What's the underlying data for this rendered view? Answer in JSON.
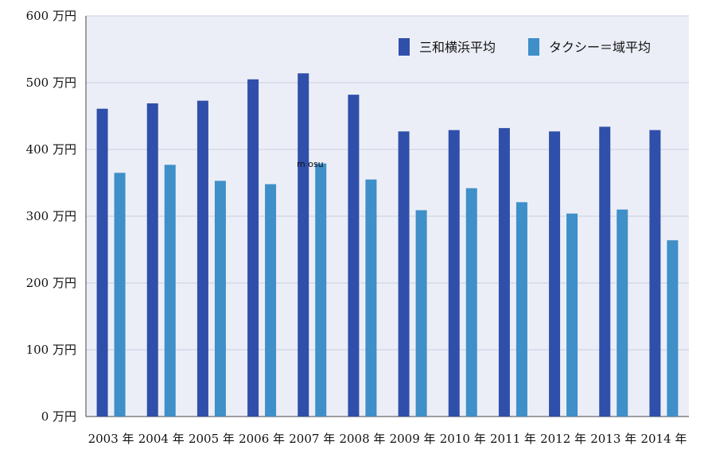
{
  "chart_data": {
    "type": "bar",
    "categories": [
      "2003 年",
      "2004 年",
      "2005 年",
      "2006 年",
      "2007 年",
      "2008 年",
      "2009 年",
      "2010 年",
      "2011 年",
      "2012 年",
      "2013 年",
      "2014 年"
    ],
    "series": [
      {
        "name": "三和横浜平均",
        "color": "#2f4faa",
        "values": [
          461,
          469,
          473,
          505,
          514,
          482,
          427,
          429,
          432,
          427,
          434,
          429
        ]
      },
      {
        "name": "タクシー＝域平均",
        "color": "#3f8fc8",
        "values": [
          365,
          377,
          353,
          348,
          379,
          355,
          309,
          342,
          321,
          304,
          310,
          264
        ]
      }
    ],
    "yticks": [
      "0 万円",
      "100 万円",
      "200 万円",
      "300 万円",
      "400 万円",
      "500 万円",
      "600 万円"
    ],
    "ylim": [
      0,
      600
    ],
    "grid": true,
    "legend_position": "top-right",
    "plot_background": "#eceef7",
    "grid_color": "#c9cde0",
    "annotation": "m osu"
  }
}
